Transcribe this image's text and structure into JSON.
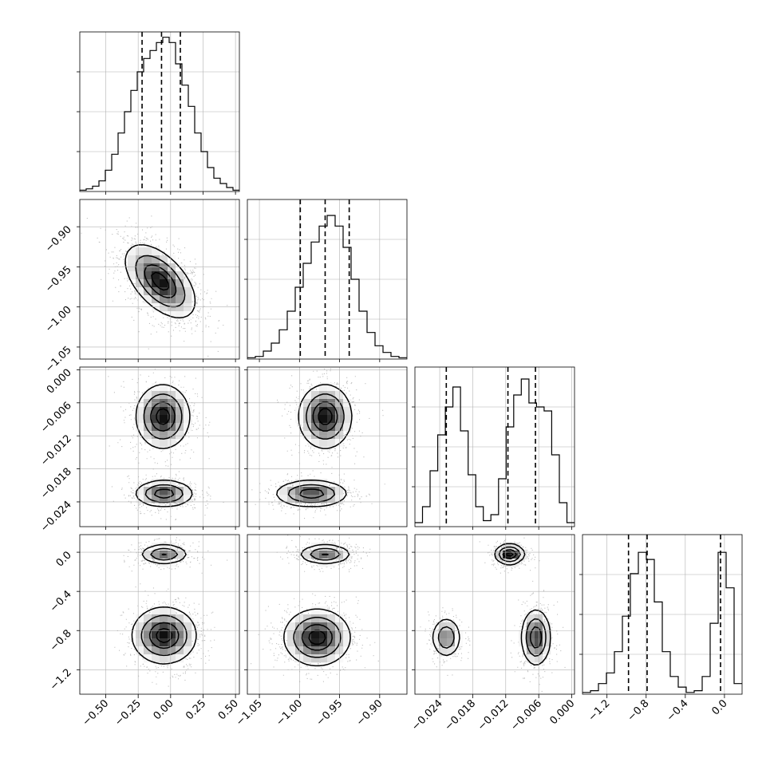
{
  "chart_data": {
    "type": "corner",
    "grid": true,
    "params": [
      {
        "range": [
          -0.7,
          0.53
        ],
        "ticks": [
          -0.5,
          -0.25,
          0.0,
          0.25,
          0.5
        ],
        "tick_labels": [
          "−0.50",
          "−0.25",
          "0.00",
          "0.25",
          "0.50"
        ],
        "quantiles": [
          -0.22,
          -0.07,
          0.075
        ],
        "histogram": {
          "counts": [
            0.5,
            1,
            2,
            4,
            8,
            14,
            22,
            30,
            38,
            45,
            50,
            53,
            56,
            58,
            56,
            48,
            40,
            32,
            22,
            15,
            9,
            5,
            3,
            1.5,
            0.5
          ],
          "ymax": 60
        }
      },
      {
        "range": [
          -1.065,
          -0.866
        ],
        "ticks": [
          -1.05,
          -1.0,
          -0.95,
          -0.9
        ],
        "tick_labels": [
          "−1.05",
          "−1.00",
          "−0.95",
          "−0.90"
        ],
        "quantiles": [
          -0.999,
          -0.968,
          -0.938
        ],
        "histogram": {
          "counts": [
            0.5,
            1,
            3,
            6,
            11,
            18,
            27,
            36,
            44,
            50,
            54,
            50,
            42,
            30,
            18,
            10,
            5,
            2.5,
            1,
            0.5
          ],
          "ymax": 60
        }
      },
      {
        "range": [
          -0.0285,
          0.0005
        ],
        "ticks": [
          -0.024,
          -0.018,
          -0.012,
          -0.006,
          0.0
        ],
        "tick_labels": [
          "−0.024",
          "−0.018",
          "−0.012",
          "−0.006",
          "0.000"
        ],
        "quantiles": [
          -0.0228,
          -0.0116,
          -0.0066
        ],
        "histogram": {
          "counts": [
            1,
            5,
            14,
            23,
            30,
            35,
            24,
            13,
            5,
            1.5,
            3,
            12,
            25,
            33,
            37,
            31,
            30,
            29,
            18,
            6,
            1
          ],
          "ymax": 40
        }
      },
      {
        "range": [
          -1.45,
          0.18
        ],
        "ticks": [
          -1.2,
          -0.8,
          -0.4,
          0.0
        ],
        "tick_labels": [
          "−1.2",
          "−0.8",
          "−0.4",
          "0.0"
        ],
        "quantiles": [
          -0.98,
          -0.79,
          -0.04
        ],
        "histogram": {
          "counts": [
            0.5,
            1,
            3,
            6,
            12,
            22,
            34,
            40,
            38,
            26,
            12,
            5,
            2,
            0.5,
            1,
            5,
            20,
            40,
            30,
            3
          ],
          "ymax": 45
        }
      }
    ],
    "pairs": [
      {
        "x": 0,
        "y": 1,
        "modes": [
          {
            "cx": -0.08,
            "cy": -0.968,
            "sx": 0.13,
            "sy": 0.022,
            "rho": -0.55,
            "weight": 1.0
          }
        ]
      },
      {
        "x": 0,
        "y": 2,
        "modes": [
          {
            "cx": -0.06,
            "cy": -0.0085,
            "sx": 0.1,
            "sy": 0.0028,
            "rho": 0.0,
            "weight": 0.55
          },
          {
            "cx": -0.05,
            "cy": -0.0225,
            "sx": 0.11,
            "sy": 0.0012,
            "rho": 0.0,
            "weight": 0.45
          }
        ]
      },
      {
        "x": 0,
        "y": 3,
        "modes": [
          {
            "cx": -0.05,
            "cy": -0.02,
            "sx": 0.09,
            "sy": 0.05,
            "rho": 0.0,
            "weight": 0.4
          },
          {
            "cx": -0.05,
            "cy": -0.85,
            "sx": 0.12,
            "sy": 0.14,
            "rho": 0.0,
            "weight": 0.6
          }
        ]
      },
      {
        "x": 1,
        "y": 2,
        "modes": [
          {
            "cx": -0.968,
            "cy": -0.0085,
            "sx": 0.016,
            "sy": 0.0028,
            "rho": 0.0,
            "weight": 0.55
          },
          {
            "cx": -0.985,
            "cy": -0.0225,
            "sx": 0.022,
            "sy": 0.0012,
            "rho": 0.0,
            "weight": 0.45
          }
        ]
      },
      {
        "x": 1,
        "y": 3,
        "modes": [
          {
            "cx": -0.968,
            "cy": -0.02,
            "sx": 0.016,
            "sy": 0.05,
            "rho": 0.0,
            "weight": 0.4
          },
          {
            "cx": -0.978,
            "cy": -0.87,
            "sx": 0.02,
            "sy": 0.14,
            "rho": 0.0,
            "weight": 0.6
          }
        ]
      },
      {
        "x": 2,
        "y": 3,
        "modes": [
          {
            "cx": -0.0113,
            "cy": -0.02,
            "sx": 0.0013,
            "sy": 0.05,
            "rho": 0.0,
            "weight": 0.4
          },
          {
            "cx": -0.0228,
            "cy": -0.87,
            "sx": 0.0013,
            "sy": 0.1,
            "rho": 0.0,
            "weight": 0.25
          },
          {
            "cx": -0.0065,
            "cy": -0.87,
            "sx": 0.0013,
            "sy": 0.14,
            "rho": 0.0,
            "weight": 0.35
          }
        ]
      }
    ]
  }
}
